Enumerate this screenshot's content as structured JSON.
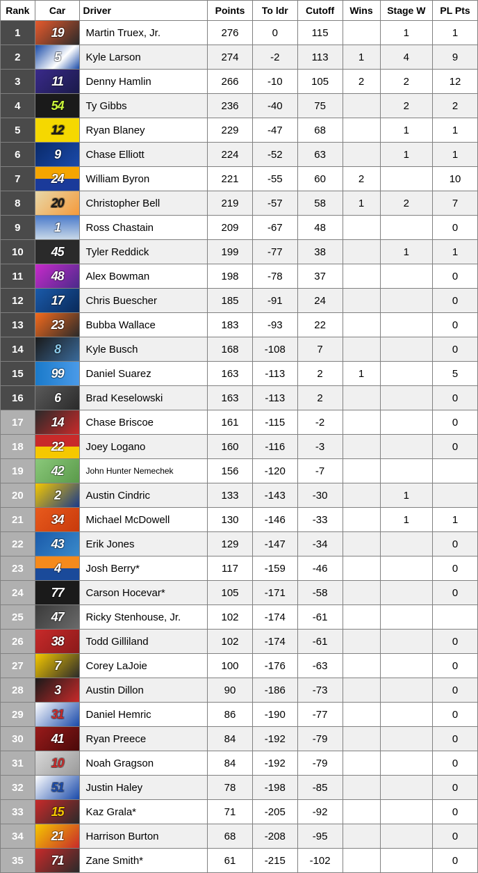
{
  "table": {
    "columns": [
      {
        "key": "rank",
        "label": "Rank",
        "class": "col-rank",
        "align": "center"
      },
      {
        "key": "car",
        "label": "Car",
        "class": "col-car",
        "align": "center"
      },
      {
        "key": "driver",
        "label": "Driver",
        "class": "col-driver",
        "align": "left"
      },
      {
        "key": "points",
        "label": "Points",
        "class": "col-points",
        "align": "center"
      },
      {
        "key": "toldr",
        "label": "To ldr",
        "class": "col-toldr",
        "align": "center"
      },
      {
        "key": "cutoff",
        "label": "Cutoff",
        "class": "col-cutoff",
        "align": "center"
      },
      {
        "key": "wins",
        "label": "Wins",
        "class": "col-wins",
        "align": "center"
      },
      {
        "key": "stagew",
        "label": "Stage W",
        "class": "col-stagew",
        "align": "center"
      },
      {
        "key": "plpts",
        "label": "PL Pts",
        "class": "col-plpts",
        "align": "center"
      }
    ],
    "rank_colors": {
      "top16": "#4a4a4a",
      "rest": "#b0b0b0"
    },
    "rows": [
      {
        "rank": "1",
        "car": "19",
        "car_bg": "linear-gradient(135deg,#e85a2c,#2a2a2a)",
        "car_fg": "#ffffff",
        "driver": "Martin Truex, Jr.",
        "points": "276",
        "toldr": "0",
        "cutoff": "115",
        "wins": "",
        "stagew": "1",
        "plpts": "1",
        "row_bg": "#ffffff"
      },
      {
        "rank": "2",
        "car": "5",
        "car_bg": "linear-gradient(135deg,#1a4ba8,#ffffff 60%,#1a4ba8)",
        "car_fg": "#ffffff",
        "driver": "Kyle Larson",
        "points": "274",
        "toldr": "-2",
        "cutoff": "113",
        "wins": "1",
        "stagew": "4",
        "plpts": "9",
        "row_bg": "#f0f0f0"
      },
      {
        "rank": "3",
        "car": "11",
        "car_bg": "linear-gradient(135deg,#3a2a8a,#1a1a4a)",
        "car_fg": "#ffffff",
        "driver": "Denny Hamlin",
        "points": "266",
        "toldr": "-10",
        "cutoff": "105",
        "wins": "2",
        "stagew": "2",
        "plpts": "12",
        "row_bg": "#ffffff"
      },
      {
        "rank": "4",
        "car": "54",
        "car_bg": "#1a1a1a",
        "car_fg": "#c9f53a",
        "driver": "Ty Gibbs",
        "points": "236",
        "toldr": "-40",
        "cutoff": "75",
        "wins": "",
        "stagew": "2",
        "plpts": "2",
        "row_bg": "#f0f0f0"
      },
      {
        "rank": "5",
        "car": "12",
        "car_bg": "#f5d800",
        "car_fg": "#1a1a1a",
        "driver": "Ryan Blaney",
        "points": "229",
        "toldr": "-47",
        "cutoff": "68",
        "wins": "",
        "stagew": "1",
        "plpts": "1",
        "row_bg": "#ffffff"
      },
      {
        "rank": "6",
        "car": "9",
        "car_bg": "linear-gradient(135deg,#0a2a6a,#1a4aaa)",
        "car_fg": "#ffffff",
        "driver": "Chase Elliott",
        "points": "224",
        "toldr": "-52",
        "cutoff": "63",
        "wins": "",
        "stagew": "1",
        "plpts": "1",
        "row_bg": "#f0f0f0"
      },
      {
        "rank": "7",
        "car": "24",
        "car_bg": "linear-gradient(180deg,#f5a500 50%,#1a3a9a 50%)",
        "car_fg": "#ffffff",
        "driver": "William Byron",
        "points": "221",
        "toldr": "-55",
        "cutoff": "60",
        "wins": "2",
        "stagew": "",
        "plpts": "10",
        "row_bg": "#ffffff"
      },
      {
        "rank": "8",
        "car": "20",
        "car_bg": "linear-gradient(135deg,#e8d8a8,#f59a3c)",
        "car_fg": "#1a1a1a",
        "driver": "Christopher Bell",
        "points": "219",
        "toldr": "-57",
        "cutoff": "58",
        "wins": "1",
        "stagew": "2",
        "plpts": "7",
        "row_bg": "#f0f0f0"
      },
      {
        "rank": "9",
        "car": "1",
        "car_bg": "linear-gradient(180deg,#4a7aca,#c8d8e8)",
        "car_fg": "#ffffff",
        "driver": "Ross Chastain",
        "points": "209",
        "toldr": "-67",
        "cutoff": "48",
        "wins": "",
        "stagew": "",
        "plpts": "0",
        "row_bg": "#ffffff"
      },
      {
        "rank": "10",
        "car": "45",
        "car_bg": "#2a2a2a",
        "car_fg": "#ffffff",
        "driver": "Tyler Reddick",
        "points": "199",
        "toldr": "-77",
        "cutoff": "38",
        "wins": "",
        "stagew": "1",
        "plpts": "1",
        "row_bg": "#f0f0f0"
      },
      {
        "rank": "11",
        "car": "48",
        "car_bg": "linear-gradient(135deg,#c82aca,#4a2a8a)",
        "car_fg": "#ffffff",
        "driver": "Alex Bowman",
        "points": "198",
        "toldr": "-78",
        "cutoff": "37",
        "wins": "",
        "stagew": "",
        "plpts": "0",
        "row_bg": "#ffffff"
      },
      {
        "rank": "12",
        "car": "17",
        "car_bg": "linear-gradient(135deg,#1a5aaa,#0a2a5a)",
        "car_fg": "#ffffff",
        "driver": "Chris Buescher",
        "points": "185",
        "toldr": "-91",
        "cutoff": "24",
        "wins": "",
        "stagew": "",
        "plpts": "0",
        "row_bg": "#f0f0f0"
      },
      {
        "rank": "13",
        "car": "23",
        "car_bg": "linear-gradient(135deg,#f56a1c,#2a2a2a)",
        "car_fg": "#ffffff",
        "driver": "Bubba Wallace",
        "points": "183",
        "toldr": "-93",
        "cutoff": "22",
        "wins": "",
        "stagew": "",
        "plpts": "0",
        "row_bg": "#ffffff"
      },
      {
        "rank": "14",
        "car": "8",
        "car_bg": "linear-gradient(135deg,#1a1a1a,#3a6a9a)",
        "car_fg": "#8ac8e8",
        "driver": "Kyle Busch",
        "points": "168",
        "toldr": "-108",
        "cutoff": "7",
        "wins": "",
        "stagew": "",
        "plpts": "0",
        "row_bg": "#f0f0f0"
      },
      {
        "rank": "15",
        "car": "99",
        "car_bg": "linear-gradient(90deg,#1a7aca,#4a9ae8)",
        "car_fg": "#ffffff",
        "driver": "Daniel Suarez",
        "points": "163",
        "toldr": "-113",
        "cutoff": "2",
        "wins": "1",
        "stagew": "",
        "plpts": "5",
        "row_bg": "#ffffff"
      },
      {
        "rank": "16",
        "car": "6",
        "car_bg": "linear-gradient(135deg,#5a5a5a,#2a2a2a)",
        "car_fg": "#ffffff",
        "driver": "Brad Keselowski",
        "points": "163",
        "toldr": "-113",
        "cutoff": "2",
        "wins": "",
        "stagew": "",
        "plpts": "0",
        "row_bg": "#f0f0f0"
      },
      {
        "rank": "17",
        "car": "14",
        "car_bg": "linear-gradient(135deg,#2a2a2a,#c82a2a)",
        "car_fg": "#ffffff",
        "driver": "Chase Briscoe",
        "points": "161",
        "toldr": "-115",
        "cutoff": "-2",
        "wins": "",
        "stagew": "",
        "plpts": "0",
        "row_bg": "#ffffff"
      },
      {
        "rank": "18",
        "car": "22",
        "car_bg": "linear-gradient(180deg,#c82a2a 50%,#f5c800 50%)",
        "car_fg": "#ffffff",
        "driver": "Joey Logano",
        "points": "160",
        "toldr": "-116",
        "cutoff": "-3",
        "wins": "",
        "stagew": "",
        "plpts": "0",
        "row_bg": "#f0f0f0"
      },
      {
        "rank": "19",
        "car": "42",
        "car_bg": "linear-gradient(135deg,#8ac87a,#5a9a4a)",
        "car_fg": "#ffffff",
        "driver": "John Hunter Nemechek",
        "points": "156",
        "toldr": "-120",
        "cutoff": "-7",
        "wins": "",
        "stagew": "",
        "plpts": "",
        "row_bg": "#ffffff",
        "driver_small": true
      },
      {
        "rank": "20",
        "car": "2",
        "car_bg": "linear-gradient(135deg,#f5c800,#1a3a8a)",
        "car_fg": "#ffffff",
        "driver": "Austin Cindric",
        "points": "133",
        "toldr": "-143",
        "cutoff": "-30",
        "wins": "",
        "stagew": "1",
        "plpts": "",
        "row_bg": "#f0f0f0"
      },
      {
        "rank": "21",
        "car": "34",
        "car_bg": "linear-gradient(135deg,#e85a1c,#c83a0c)",
        "car_fg": "#ffffff",
        "driver": "Michael McDowell",
        "points": "130",
        "toldr": "-146",
        "cutoff": "-33",
        "wins": "",
        "stagew": "1",
        "plpts": "1",
        "row_bg": "#ffffff"
      },
      {
        "rank": "22",
        "car": "43",
        "car_bg": "linear-gradient(135deg,#1a5aaa,#3a8aca)",
        "car_fg": "#ffffff",
        "driver": "Erik Jones",
        "points": "129",
        "toldr": "-147",
        "cutoff": "-34",
        "wins": "",
        "stagew": "",
        "plpts": "0",
        "row_bg": "#f0f0f0"
      },
      {
        "rank": "23",
        "car": "4",
        "car_bg": "linear-gradient(180deg,#f58a1c 50%,#1a4a9a 50%)",
        "car_fg": "#ffffff",
        "driver": "Josh Berry*",
        "points": "117",
        "toldr": "-159",
        "cutoff": "-46",
        "wins": "",
        "stagew": "",
        "plpts": "0",
        "row_bg": "#ffffff"
      },
      {
        "rank": "24",
        "car": "77",
        "car_bg": "#1a1a1a",
        "car_fg": "#ffffff",
        "driver": "Carson Hocevar*",
        "points": "105",
        "toldr": "-171",
        "cutoff": "-58",
        "wins": "",
        "stagew": "",
        "plpts": "0",
        "row_bg": "#f0f0f0"
      },
      {
        "rank": "25",
        "car": "47",
        "car_bg": "linear-gradient(135deg,#3a3a3a,#6a6a6a)",
        "car_fg": "#ffffff",
        "driver": "Ricky Stenhouse, Jr.",
        "points": "102",
        "toldr": "-174",
        "cutoff": "-61",
        "wins": "",
        "stagew": "",
        "plpts": "",
        "row_bg": "#ffffff"
      },
      {
        "rank": "26",
        "car": "38",
        "car_bg": "linear-gradient(135deg,#c82a2a,#8a1a1a)",
        "car_fg": "#ffffff",
        "driver": "Todd Gilliland",
        "points": "102",
        "toldr": "-174",
        "cutoff": "-61",
        "wins": "",
        "stagew": "",
        "plpts": "0",
        "row_bg": "#f0f0f0"
      },
      {
        "rank": "27",
        "car": "7",
        "car_bg": "linear-gradient(135deg,#f5c800,#2a2a2a)",
        "car_fg": "#ffffff",
        "driver": "Corey LaJoie",
        "points": "100",
        "toldr": "-176",
        "cutoff": "-63",
        "wins": "",
        "stagew": "",
        "plpts": "0",
        "row_bg": "#ffffff"
      },
      {
        "rank": "28",
        "car": "3",
        "car_bg": "linear-gradient(135deg,#1a1a1a,#c82a2a)",
        "car_fg": "#ffffff",
        "driver": "Austin Dillon",
        "points": "90",
        "toldr": "-186",
        "cutoff": "-73",
        "wins": "",
        "stagew": "",
        "plpts": "0",
        "row_bg": "#f0f0f0"
      },
      {
        "rank": "29",
        "car": "31",
        "car_bg": "linear-gradient(135deg,#ffffff,#1a4aaa)",
        "car_fg": "#c82a2a",
        "driver": "Daniel Hemric",
        "points": "86",
        "toldr": "-190",
        "cutoff": "-77",
        "wins": "",
        "stagew": "",
        "plpts": "0",
        "row_bg": "#ffffff"
      },
      {
        "rank": "30",
        "car": "41",
        "car_bg": "linear-gradient(135deg,#9a1a1a,#4a0a0a)",
        "car_fg": "#ffffff",
        "driver": "Ryan Preece",
        "points": "84",
        "toldr": "-192",
        "cutoff": "-79",
        "wins": "",
        "stagew": "",
        "plpts": "0",
        "row_bg": "#f0f0f0"
      },
      {
        "rank": "31",
        "car": "10",
        "car_bg": "linear-gradient(135deg,#d8d8d8,#9a9a9a)",
        "car_fg": "#c82a2a",
        "driver": "Noah Gragson",
        "points": "84",
        "toldr": "-192",
        "cutoff": "-79",
        "wins": "",
        "stagew": "",
        "plpts": "0",
        "row_bg": "#ffffff"
      },
      {
        "rank": "32",
        "car": "51",
        "car_bg": "linear-gradient(135deg,#ffffff,#1a4aaa)",
        "car_fg": "#1a4aaa",
        "driver": "Justin Haley",
        "points": "78",
        "toldr": "-198",
        "cutoff": "-85",
        "wins": "",
        "stagew": "",
        "plpts": "0",
        "row_bg": "#f0f0f0"
      },
      {
        "rank": "33",
        "car": "15",
        "car_bg": "linear-gradient(135deg,#c82a2a,#2a2a2a)",
        "car_fg": "#f5c800",
        "driver": "Kaz Grala*",
        "points": "71",
        "toldr": "-205",
        "cutoff": "-92",
        "wins": "",
        "stagew": "",
        "plpts": "0",
        "row_bg": "#ffffff"
      },
      {
        "rank": "34",
        "car": "21",
        "car_bg": "linear-gradient(135deg,#f5c800,#c82a2a)",
        "car_fg": "#ffffff",
        "driver": "Harrison Burton",
        "points": "68",
        "toldr": "-208",
        "cutoff": "-95",
        "wins": "",
        "stagew": "",
        "plpts": "0",
        "row_bg": "#f0f0f0"
      },
      {
        "rank": "35",
        "car": "71",
        "car_bg": "linear-gradient(135deg,#c82a2a,#2a2a2a)",
        "car_fg": "#ffffff",
        "driver": "Zane Smith*",
        "points": "61",
        "toldr": "-215",
        "cutoff": "-102",
        "wins": "",
        "stagew": "",
        "plpts": "0",
        "row_bg": "#ffffff"
      }
    ]
  }
}
